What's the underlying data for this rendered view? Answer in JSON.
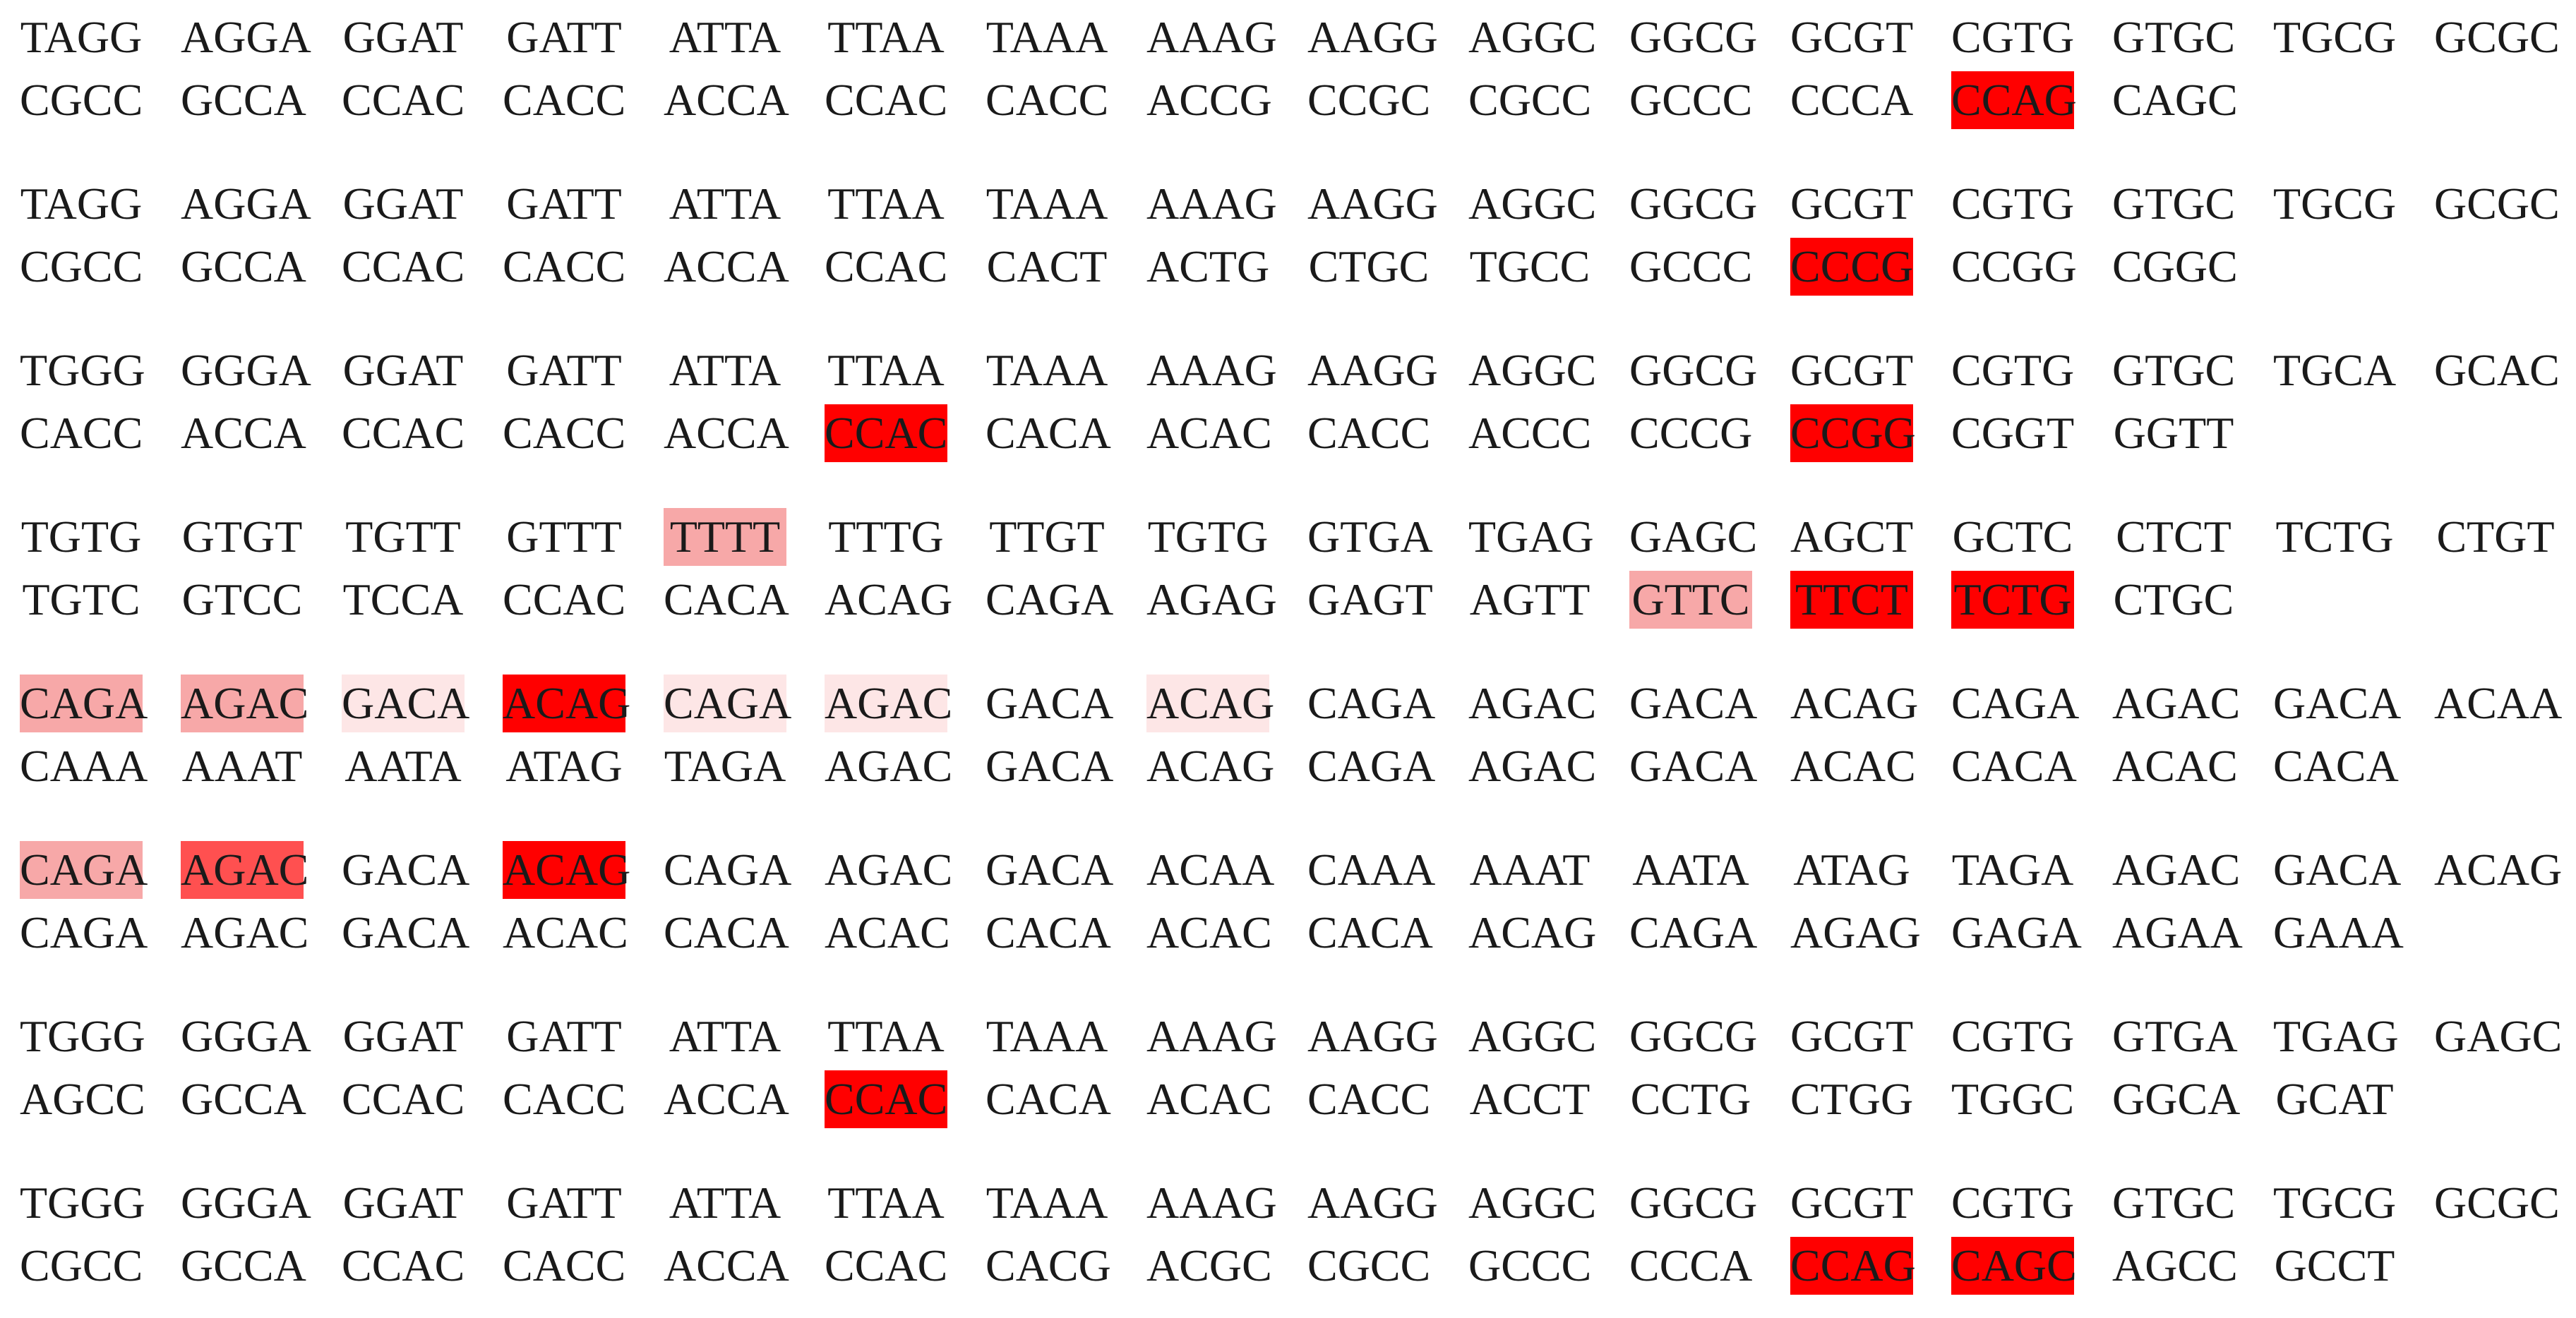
{
  "highlight_colors": {
    "4": "#ff0000",
    "3": "#ff5050",
    "2": "#f7a8a8",
    "1": "#fde6e6"
  },
  "blocks": [
    {
      "rows": [
        {
          "tokens": [
            "TAGG",
            "AGGA",
            "GGAT",
            "GATT",
            "ATTA",
            "TTAA",
            "TAAA",
            "AAAG",
            "AAGG",
            "AGGC",
            "GGCG",
            "GCGT",
            "CGTG",
            "GTGC",
            "TGCG",
            "GCGC"
          ],
          "highlights": {}
        },
        {
          "tokens": [
            "CGCC",
            "GCCA",
            "CCAC",
            "CACC",
            "ACCA",
            "CCAC",
            "CACC",
            "ACCG",
            "CCGC",
            "CGCC",
            "GCCC",
            "CCCA",
            "CCAG",
            "CAGC"
          ],
          "highlights": {
            "12": 4
          }
        }
      ]
    },
    {
      "rows": [
        {
          "tokens": [
            "TAGG",
            "AGGA",
            "GGAT",
            "GATT",
            "ATTA",
            "TTAA",
            "TAAA",
            "AAAG",
            "AAGG",
            "AGGC",
            "GGCG",
            "GCGT",
            "CGTG",
            "GTGC",
            "TGCG",
            "GCGC"
          ],
          "highlights": {}
        },
        {
          "tokens": [
            "CGCC",
            "GCCA",
            "CCAC",
            "CACC",
            "ACCA",
            "CCAC",
            "CACT",
            "ACTG",
            "CTGC",
            "TGCC",
            "GCCC",
            "CCCG",
            "CCGG",
            "CGGC"
          ],
          "highlights": {
            "11": 4
          }
        }
      ]
    },
    {
      "rows": [
        {
          "tokens": [
            "TGGG",
            "GGGA",
            "GGAT",
            "GATT",
            "ATTA",
            "TTAA",
            "TAAA",
            "AAAG",
            "AAGG",
            "AGGC",
            "GGCG",
            "GCGT",
            "CGTG",
            "GTGC",
            "TGCA",
            "GCAC"
          ],
          "highlights": {}
        },
        {
          "tokens": [
            "CACC",
            "ACCA",
            "CCAC",
            "CACC",
            "ACCA",
            "CCAC",
            "CACA",
            "ACAC",
            "CACC",
            "ACCC",
            "CCCG",
            "CCGG",
            "CGGT",
            "GGTT"
          ],
          "highlights": {
            "5": 4,
            "11": 4
          }
        }
      ]
    },
    {
      "rows": [
        {
          "tokens": [
            "TGTG",
            "GTGT",
            "TGTT",
            "GTTT",
            "TTTT",
            "TTTG",
            "TTGT",
            "TGTG",
            "GTGA",
            "TGAG",
            "GAGC",
            "AGCT",
            "GCTC",
            "CTCT",
            "TCTG",
            "CTGT"
          ],
          "highlights": {
            "4": 2
          }
        },
        {
          "tokens": [
            "TGTC",
            "GTCC",
            "TCCA",
            "CCAC",
            "CACA",
            "ACAG",
            "CAGA",
            "AGAG",
            "GAGT",
            "AGTT",
            "GTTC",
            "TTCT",
            "TCTG",
            "CTGC"
          ],
          "highlights": {
            "10": 2,
            "11": 4,
            "12": 4
          }
        }
      ]
    },
    {
      "rows": [
        {
          "tokens": [
            "CAGA",
            "AGAC",
            "GACA",
            "ACAG",
            "CAGA",
            "AGAC",
            "GACA",
            "ACAG",
            "CAGA",
            "AGAC",
            "GACA",
            "ACAG",
            "CAGA",
            "AGAC",
            "GACA",
            "ACAA"
          ],
          "highlights": {
            "0": 2,
            "1": 2,
            "2": 1,
            "3": 4,
            "4": 1,
            "5": 1,
            "7": 1
          }
        },
        {
          "tokens": [
            "CAAA",
            "AAAT",
            "AATA",
            "ATAG",
            "TAGA",
            "AGAC",
            "GACA",
            "ACAG",
            "CAGA",
            "AGAC",
            "GACA",
            "ACAC",
            "CACA",
            "ACAC",
            "CACA"
          ],
          "highlights": {}
        }
      ]
    },
    {
      "rows": [
        {
          "tokens": [
            "CAGA",
            "AGAC",
            "GACA",
            "ACAG",
            "CAGA",
            "AGAC",
            "GACA",
            "ACAA",
            "CAAA",
            "AAAT",
            "AATA",
            "ATAG",
            "TAGA",
            "AGAC",
            "GACA",
            "ACAG"
          ],
          "highlights": {
            "0": 2,
            "1": 3,
            "3": 4
          }
        },
        {
          "tokens": [
            "CAGA",
            "AGAC",
            "GACA",
            "ACAC",
            "CACA",
            "ACAC",
            "CACA",
            "ACAC",
            "CACA",
            "ACAG",
            "CAGA",
            "AGAG",
            "GAGA",
            "AGAA",
            "GAAA"
          ],
          "highlights": {}
        }
      ]
    },
    {
      "rows": [
        {
          "tokens": [
            "TGGG",
            "GGGA",
            "GGAT",
            "GATT",
            "ATTA",
            "TTAA",
            "TAAA",
            "AAAG",
            "AAGG",
            "AGGC",
            "GGCG",
            "GCGT",
            "CGTG",
            "GTGA",
            "TGAG",
            "GAGC"
          ],
          "highlights": {}
        },
        {
          "tokens": [
            "AGCC",
            "GCCA",
            "CCAC",
            "CACC",
            "ACCA",
            "CCAC",
            "CACA",
            "ACAC",
            "CACC",
            "ACCT",
            "CCTG",
            "CTGG",
            "TGGC",
            "GGCA",
            "GCAT"
          ],
          "highlights": {
            "5": 4
          }
        }
      ]
    },
    {
      "rows": [
        {
          "tokens": [
            "TGGG",
            "GGGA",
            "GGAT",
            "GATT",
            "ATTA",
            "TTAA",
            "TAAA",
            "AAAG",
            "AAGG",
            "AGGC",
            "GGCG",
            "GCGT",
            "CGTG",
            "GTGC",
            "TGCG",
            "GCGC"
          ],
          "highlights": {}
        },
        {
          "tokens": [
            "CGCC",
            "GCCA",
            "CCAC",
            "CACC",
            "ACCA",
            "CCAC",
            "CACG",
            "ACGC",
            "CGCC",
            "GCCC",
            "CCCA",
            "CCAG",
            "CAGC",
            "AGCC",
            "GCCT"
          ],
          "highlights": {
            "11": 4,
            "12": 4
          }
        }
      ]
    }
  ]
}
